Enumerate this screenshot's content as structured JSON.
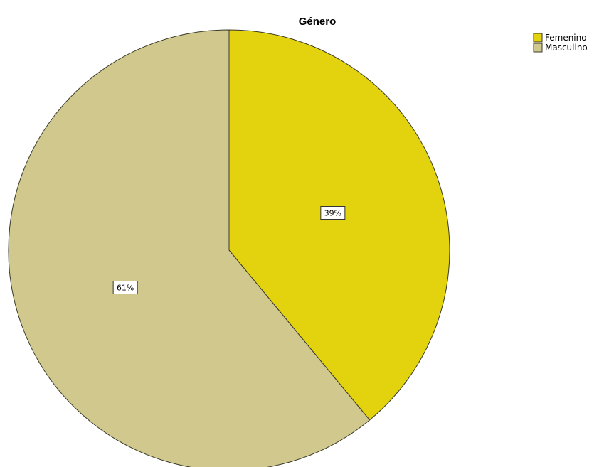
{
  "chart_data": {
    "type": "pie",
    "title": "Género",
    "categories": [
      "Femenino",
      "Masculino"
    ],
    "values": [
      39,
      61
    ],
    "data_labels": [
      "39%",
      "61%"
    ],
    "colors": [
      "#e3d30f",
      "#d0c88c"
    ],
    "legend_placement": "top-right",
    "start_angle": "12 o'clock",
    "direction": "clockwise"
  }
}
